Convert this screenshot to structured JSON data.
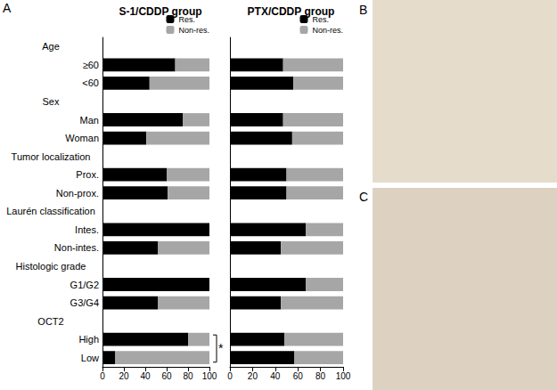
{
  "panel_labels": [
    "A",
    "B",
    "C"
  ],
  "chart_data": [
    {
      "type": "bar",
      "title": "S-1/CDDP group",
      "orientation": "horizontal",
      "stacked": true,
      "legend": "upper right",
      "grid": false,
      "tick_labels": true,
      "categories": [
        "Age",
        "≥60",
        "<60",
        "Sex",
        "Man",
        "Woman",
        "Tumor localization",
        "Prox.",
        "Non-prox.",
        "Laurén classification",
        "Intes.",
        "Non-intes.",
        "Histologic grade",
        "G1/G2",
        "G3/G4",
        "OCT2",
        "High",
        "Low"
      ],
      "series": [
        {
          "name": "Res.",
          "color": "#000000",
          "values": [
            null,
            68,
            44,
            null,
            75,
            41,
            null,
            60,
            61,
            null,
            100,
            52,
            null,
            100,
            52,
            null,
            80,
            12
          ]
        },
        {
          "name": "Non-res.",
          "color": "#a6a6a6",
          "values": [
            null,
            32,
            56,
            null,
            25,
            59,
            null,
            40,
            39,
            null,
            0,
            48,
            null,
            0,
            48,
            null,
            20,
            88
          ]
        }
      ],
      "xlim": [
        0,
        100
      ],
      "xticks": [
        0,
        20,
        40,
        60,
        80,
        100
      ],
      "annotations": [
        {
          "text": "*",
          "categories": [
            "High",
            "Low"
          ]
        }
      ]
    },
    {
      "type": "bar",
      "title": "PTX/CDDP group",
      "orientation": "horizontal",
      "stacked": true,
      "legend": "upper right",
      "grid": false,
      "tick_labels": "x",
      "categories": [
        "Age",
        "≥60",
        "<60",
        "Sex",
        "Man",
        "Woman",
        "Tumor localization",
        "Prox.",
        "Non-prox.",
        "Laurén classification",
        "Intes.",
        "Non-intes.",
        "Histologic grade",
        "G1/G2",
        "G3/G4",
        "OCT2",
        "High",
        "Low"
      ],
      "series": [
        {
          "name": "Res.",
          "color": "#000000",
          "values": [
            null,
            47,
            56,
            null,
            47,
            55,
            null,
            50,
            50,
            null,
            67,
            45,
            null,
            67,
            45,
            null,
            48,
            57
          ]
        },
        {
          "name": "Non-res.",
          "color": "#a6a6a6",
          "values": [
            null,
            53,
            44,
            null,
            53,
            45,
            null,
            50,
            50,
            null,
            33,
            55,
            null,
            33,
            55,
            null,
            52,
            43
          ]
        }
      ],
      "xlim": [
        0,
        100
      ],
      "xticks": [
        0,
        20,
        40,
        60,
        80,
        100
      ]
    }
  ]
}
